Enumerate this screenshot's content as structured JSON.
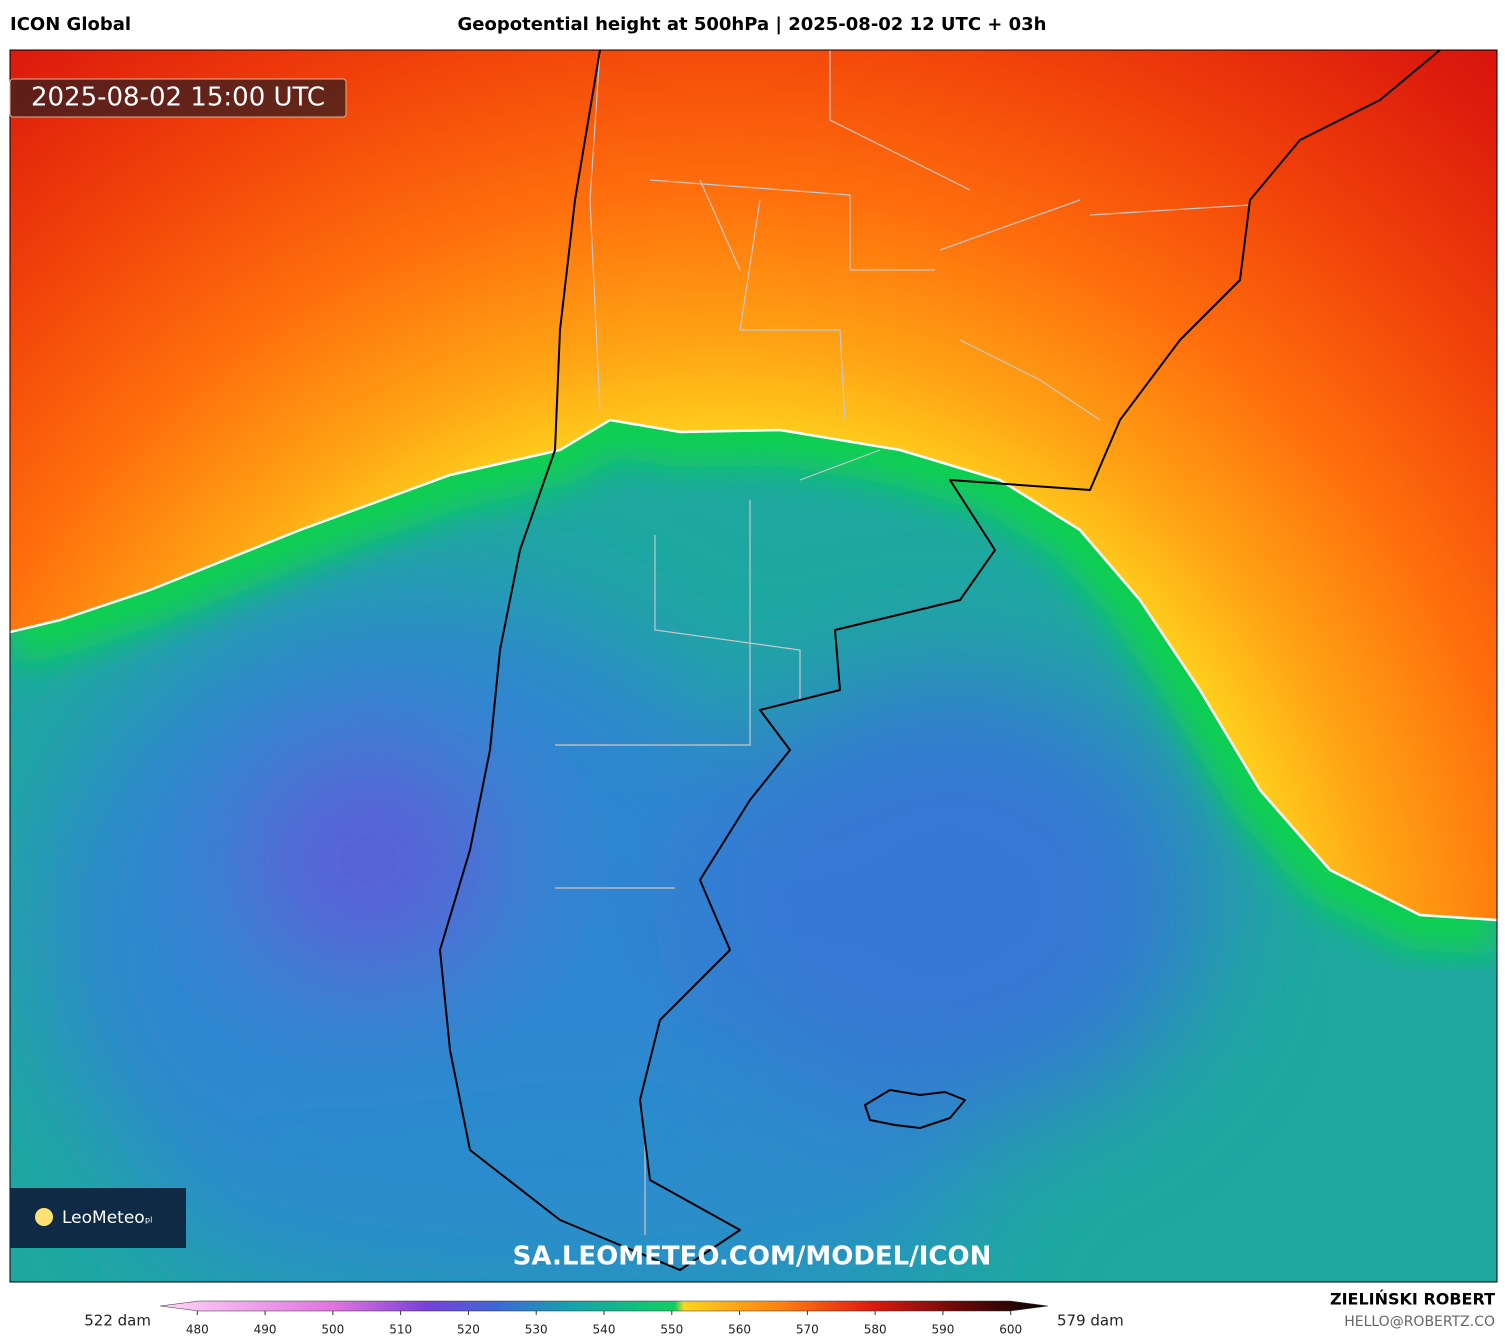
{
  "header": {
    "model": "ICON Global",
    "title": "Geopotential height at 500hPa | 2025-08-02 12 UTC + 03h"
  },
  "map": {
    "timestamp": "2025-08-02 15:00 UTC",
    "logo": "LeoMeteo",
    "logo_suffix": "pl",
    "watermark": "SA.LEOMETEO.COM/MODEL/ICON"
  },
  "colorbar": {
    "min_label": "522 dam",
    "max_label": "579 dam",
    "lim": [
      474.5,
      605.5
    ],
    "ticks": [
      480,
      490,
      500,
      510,
      520,
      530,
      540,
      550,
      560,
      570,
      580,
      590,
      600
    ]
  },
  "footer": {
    "author": "ZIELIŃSKI ROBERT",
    "contact": "HELLO@ROBERTZ.CO"
  }
}
